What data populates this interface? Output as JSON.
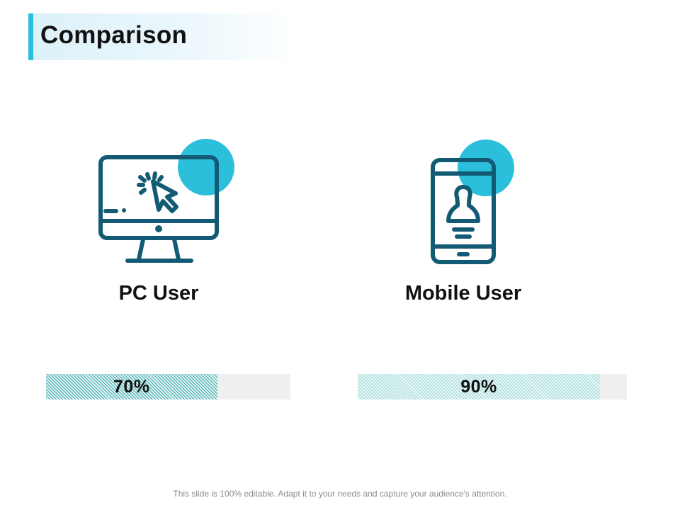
{
  "slide": {
    "title": "Comparison",
    "footer": "This slide is 100% editable. Adapt it to your needs and capture your audience's attention."
  },
  "colors": {
    "accent": "#2bbfdc",
    "icon_stroke": "#135b74",
    "title_band": "#dcf1f9",
    "bar_track": "#efefef",
    "pc_bar": "#5fb8bb",
    "mobile_bar": "#a9dcdc"
  },
  "items": [
    {
      "label": "PC User",
      "value": 0.7,
      "value_text": "70%",
      "icon": "monitor-click-icon"
    },
    {
      "label": "Mobile User",
      "value": 0.9,
      "value_text": "90%",
      "icon": "smartphone-user-icon"
    }
  ]
}
